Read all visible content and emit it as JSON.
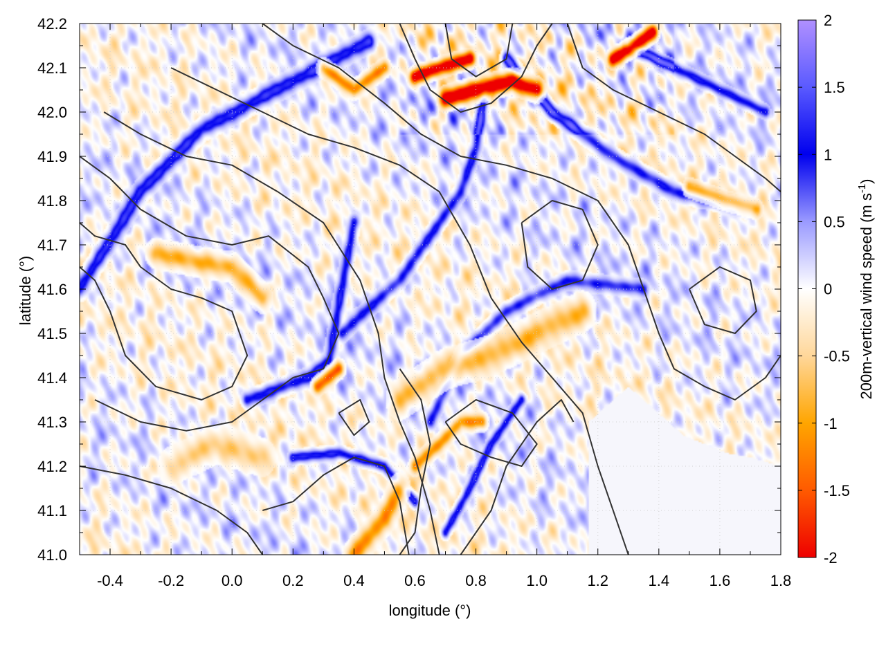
{
  "chart_data": {
    "type": "heatmap",
    "title": "",
    "xlabel": "longitude (°)",
    "ylabel": "latitude (°)",
    "colorbar_label": "200m-vertical wind speed (m s",
    "colorbar_label_sup": "-1",
    "colorbar_label_close": ")",
    "xlim": [
      -0.5,
      1.8
    ],
    "ylim": [
      41.0,
      42.2
    ],
    "xticks": [
      -0.4,
      -0.2,
      0.0,
      0.2,
      0.4,
      0.6,
      0.8,
      1.0,
      1.2,
      1.4,
      1.6,
      1.8
    ],
    "xtick_labels": [
      "-0.4",
      "-0.2",
      "0.0",
      "0.2",
      "0.4",
      "0.6",
      "0.8",
      "1.0",
      "1.2",
      "1.4",
      "1.6",
      "1.8"
    ],
    "yticks": [
      41.0,
      41.1,
      41.2,
      41.3,
      41.4,
      41.5,
      41.6,
      41.7,
      41.8,
      41.9,
      42.0,
      42.1,
      42.2
    ],
    "ytick_labels": [
      "41.0",
      "41.1",
      "41.2",
      "41.3",
      "41.4",
      "41.5",
      "41.6",
      "41.7",
      "41.8",
      "41.9",
      "42.0",
      "42.1",
      "42.2"
    ],
    "clim": [
      -2,
      2
    ],
    "cbticks": [
      2,
      1.5,
      1,
      0.5,
      0,
      -0.5,
      -1,
      -1.5,
      -2
    ],
    "cbtick_labels": [
      "2",
      "1.5",
      "1",
      "0.5",
      "0",
      "-0.5",
      "-1",
      "-1.5",
      "-2"
    ],
    "colormap": [
      [
        -2.0,
        "#ee0000"
      ],
      [
        -1.5,
        "#ff5a00"
      ],
      [
        -1.0,
        "#ffa500"
      ],
      [
        -0.5,
        "#ffd79a"
      ],
      [
        0.0,
        "#ffffff"
      ],
      [
        0.5,
        "#9a9aff"
      ],
      [
        1.0,
        "#0000ee"
      ],
      [
        1.5,
        "#5a5aff"
      ],
      [
        2.0,
        "#b090ff"
      ]
    ],
    "grid": true,
    "grid_color": "#d0d0d0",
    "contour_color": "#333333",
    "sea_color": "#f6f6fc",
    "coastline": [
      [
        1.17,
        41.3
      ],
      [
        1.3,
        41.38
      ],
      [
        1.48,
        41.27
      ],
      [
        1.62,
        41.23
      ],
      [
        1.7,
        41.22
      ],
      [
        1.8,
        41.2
      ]
    ],
    "blue_features": [
      {
        "points": [
          [
            -0.5,
            41.6
          ],
          [
            -0.3,
            41.82
          ],
          [
            -0.1,
            41.96
          ],
          [
            0.2,
            42.07
          ],
          [
            0.45,
            42.16
          ]
        ],
        "value": 1.2,
        "width": 0.012
      },
      {
        "points": [
          [
            0.05,
            41.35
          ],
          [
            0.25,
            41.4
          ],
          [
            0.32,
            41.44
          ],
          [
            0.36,
            41.6
          ],
          [
            0.4,
            41.75
          ]
        ],
        "value": 1.1,
        "width": 0.01
      },
      {
        "points": [
          [
            0.36,
            41.5
          ],
          [
            0.55,
            41.62
          ],
          [
            0.75,
            41.82
          ],
          [
            0.8,
            41.92
          ],
          [
            0.83,
            42.05
          ]
        ],
        "value": 1.0,
        "width": 0.01
      },
      {
        "points": [
          [
            0.9,
            42.12
          ],
          [
            1.05,
            42.0
          ],
          [
            1.25,
            41.9
          ],
          [
            1.45,
            41.82
          ],
          [
            1.7,
            41.78
          ]
        ],
        "value": 1.0,
        "width": 0.01
      },
      {
        "points": [
          [
            0.2,
            41.22
          ],
          [
            0.35,
            41.23
          ],
          [
            0.5,
            41.2
          ],
          [
            0.6,
            41.12
          ]
        ],
        "value": 1.2,
        "width": 0.008
      },
      {
        "points": [
          [
            0.65,
            41.3
          ],
          [
            0.75,
            41.45
          ],
          [
            0.9,
            41.55
          ],
          [
            1.1,
            41.62
          ],
          [
            1.35,
            41.6
          ]
        ],
        "value": 0.9,
        "width": 0.01
      },
      {
        "points": [
          [
            0.7,
            41.05
          ],
          [
            0.78,
            41.15
          ],
          [
            0.85,
            41.25
          ],
          [
            0.95,
            41.35
          ]
        ],
        "value": 1.1,
        "width": 0.008
      },
      {
        "points": [
          [
            1.3,
            42.15
          ],
          [
            1.45,
            42.1
          ],
          [
            1.6,
            42.05
          ],
          [
            1.75,
            42.0
          ]
        ],
        "value": 1.0,
        "width": 0.008
      }
    ],
    "orange_features": [
      {
        "points": [
          [
            -0.25,
            41.68
          ],
          [
            -0.1,
            41.66
          ],
          [
            0.0,
            41.65
          ],
          [
            0.1,
            41.58
          ]
        ],
        "value": -0.9,
        "width": 0.015
      },
      {
        "points": [
          [
            0.7,
            42.03
          ],
          [
            0.8,
            42.05
          ],
          [
            0.92,
            42.07
          ],
          [
            1.0,
            42.05
          ]
        ],
        "value": -1.9,
        "width": 0.012
      },
      {
        "points": [
          [
            0.6,
            42.08
          ],
          [
            0.68,
            42.1
          ],
          [
            0.78,
            42.12
          ]
        ],
        "value": -1.7,
        "width": 0.01
      },
      {
        "points": [
          [
            1.25,
            42.12
          ],
          [
            1.32,
            42.15
          ],
          [
            1.38,
            42.18
          ]
        ],
        "value": -1.8,
        "width": 0.01
      },
      {
        "points": [
          [
            0.3,
            42.1
          ],
          [
            0.4,
            42.05
          ],
          [
            0.5,
            42.1
          ]
        ],
        "value": -1.3,
        "width": 0.01
      },
      {
        "points": [
          [
            0.55,
            41.35
          ],
          [
            0.7,
            41.42
          ],
          [
            0.85,
            41.45
          ],
          [
            1.0,
            41.5
          ],
          [
            1.15,
            41.55
          ]
        ],
        "value": -0.8,
        "width": 0.02
      },
      {
        "points": [
          [
            0.4,
            41.0
          ],
          [
            0.5,
            41.08
          ],
          [
            0.55,
            41.15
          ]
        ],
        "value": -1.2,
        "width": 0.015
      },
      {
        "points": [
          [
            1.5,
            41.83
          ],
          [
            1.62,
            41.8
          ],
          [
            1.72,
            41.78
          ]
        ],
        "value": -1.0,
        "width": 0.01
      },
      {
        "points": [
          [
            0.28,
            41.38
          ],
          [
            0.35,
            41.42
          ]
        ],
        "value": -1.5,
        "width": 0.01
      },
      {
        "points": [
          [
            0.6,
            41.2
          ],
          [
            0.68,
            41.25
          ],
          [
            0.75,
            41.3
          ],
          [
            0.82,
            41.3
          ]
        ],
        "value": -1.2,
        "width": 0.01
      },
      {
        "points": [
          [
            -0.2,
            41.2
          ],
          [
            -0.05,
            41.25
          ],
          [
            0.1,
            41.22
          ]
        ],
        "value": -0.6,
        "width": 0.02
      }
    ],
    "contours": [
      [
        [
          -0.5,
          41.75
        ],
        [
          -0.45,
          41.72
        ],
        [
          -0.35,
          41.7
        ],
        [
          -0.3,
          41.65
        ],
        [
          -0.2,
          41.6
        ],
        [
          -0.1,
          41.58
        ],
        [
          0.0,
          41.55
        ],
        [
          0.05,
          41.45
        ],
        [
          0.0,
          41.38
        ],
        [
          -0.1,
          41.35
        ],
        [
          -0.25,
          41.38
        ],
        [
          -0.35,
          41.45
        ],
        [
          -0.4,
          41.55
        ],
        [
          -0.45,
          41.62
        ],
        [
          -0.5,
          41.65
        ]
      ],
      [
        [
          -0.45,
          41.35
        ],
        [
          -0.3,
          41.3
        ],
        [
          -0.15,
          41.28
        ],
        [
          0.0,
          41.3
        ],
        [
          0.1,
          41.35
        ],
        [
          0.2,
          41.4
        ],
        [
          0.3,
          41.42
        ],
        [
          0.35,
          41.5
        ],
        [
          0.3,
          41.58
        ],
        [
          0.25,
          41.65
        ],
        [
          0.12,
          41.72
        ],
        [
          0.0,
          41.7
        ],
        [
          -0.15,
          41.72
        ],
        [
          -0.3,
          41.78
        ],
        [
          -0.4,
          41.85
        ],
        [
          -0.5,
          41.9
        ]
      ],
      [
        [
          -0.42,
          42.0
        ],
        [
          -0.3,
          41.95
        ],
        [
          -0.15,
          41.9
        ],
        [
          0.0,
          41.88
        ],
        [
          0.15,
          41.82
        ],
        [
          0.3,
          41.75
        ],
        [
          0.42,
          41.62
        ],
        [
          0.48,
          41.5
        ],
        [
          0.5,
          41.4
        ],
        [
          0.55,
          41.3
        ],
        [
          0.6,
          41.22
        ],
        [
          0.65,
          41.1
        ],
        [
          0.68,
          41.0
        ]
      ],
      [
        [
          -0.2,
          42.1
        ],
        [
          -0.05,
          42.05
        ],
        [
          0.1,
          42.0
        ],
        [
          0.25,
          41.95
        ],
        [
          0.4,
          41.92
        ],
        [
          0.55,
          41.88
        ],
        [
          0.68,
          41.82
        ],
        [
          0.78,
          41.7
        ],
        [
          0.85,
          41.58
        ],
        [
          0.95,
          41.48
        ],
        [
          1.05,
          41.4
        ],
        [
          1.15,
          41.32
        ],
        [
          1.2,
          41.2
        ],
        [
          1.25,
          41.1
        ],
        [
          1.3,
          41.0
        ]
      ],
      [
        [
          0.1,
          42.2
        ],
        [
          0.2,
          42.15
        ],
        [
          0.35,
          42.1
        ],
        [
          0.5,
          42.02
        ],
        [
          0.62,
          41.95
        ],
        [
          0.75,
          41.9
        ],
        [
          0.9,
          41.88
        ],
        [
          1.05,
          41.85
        ],
        [
          1.2,
          41.8
        ],
        [
          1.3,
          41.7
        ],
        [
          1.35,
          41.6
        ],
        [
          1.4,
          41.5
        ],
        [
          1.45,
          41.42
        ],
        [
          1.55,
          41.38
        ],
        [
          1.65,
          41.35
        ],
        [
          1.75,
          41.4
        ],
        [
          1.8,
          41.45
        ]
      ],
      [
        [
          0.55,
          42.2
        ],
        [
          0.6,
          42.12
        ],
        [
          0.65,
          42.05
        ],
        [
          0.75,
          42.0
        ],
        [
          0.85,
          42.02
        ],
        [
          0.95,
          42.08
        ],
        [
          1.0,
          42.15
        ],
        [
          1.05,
          42.2
        ]
      ],
      [
        [
          0.7,
          42.2
        ],
        [
          0.72,
          42.12
        ],
        [
          0.8,
          42.08
        ],
        [
          0.9,
          42.12
        ],
        [
          0.92,
          42.2
        ]
      ],
      [
        [
          1.1,
          42.2
        ],
        [
          1.15,
          42.1
        ],
        [
          1.25,
          42.05
        ],
        [
          1.4,
          42.0
        ],
        [
          1.55,
          41.95
        ],
        [
          1.65,
          41.9
        ],
        [
          1.75,
          41.85
        ],
        [
          1.8,
          41.82
        ]
      ],
      [
        [
          0.95,
          41.75
        ],
        [
          1.05,
          41.8
        ],
        [
          1.15,
          41.78
        ],
        [
          1.2,
          41.7
        ],
        [
          1.15,
          41.62
        ],
        [
          1.05,
          41.6
        ],
        [
          0.97,
          41.65
        ],
        [
          0.95,
          41.75
        ]
      ],
      [
        [
          0.1,
          41.1
        ],
        [
          0.2,
          41.12
        ],
        [
          0.3,
          41.18
        ],
        [
          0.4,
          41.22
        ],
        [
          0.5,
          41.2
        ],
        [
          0.55,
          41.12
        ],
        [
          0.58,
          41.0
        ]
      ],
      [
        [
          -0.5,
          41.2
        ],
        [
          -0.35,
          41.18
        ],
        [
          -0.2,
          41.15
        ],
        [
          -0.05,
          41.1
        ],
        [
          0.05,
          41.05
        ],
        [
          0.1,
          41.0
        ]
      ],
      [
        [
          0.35,
          41.32
        ],
        [
          0.42,
          41.35
        ],
        [
          0.45,
          41.3
        ],
        [
          0.4,
          41.27
        ],
        [
          0.35,
          41.32
        ]
      ],
      [
        [
          0.7,
          41.3
        ],
        [
          0.8,
          41.35
        ],
        [
          0.92,
          41.32
        ],
        [
          1.0,
          41.25
        ],
        [
          0.95,
          41.2
        ],
        [
          0.85,
          41.22
        ],
        [
          0.75,
          41.25
        ],
        [
          0.7,
          41.3
        ]
      ],
      [
        [
          1.5,
          41.6
        ],
        [
          1.6,
          41.65
        ],
        [
          1.7,
          41.62
        ],
        [
          1.72,
          41.55
        ],
        [
          1.65,
          41.5
        ],
        [
          1.55,
          41.52
        ],
        [
          1.5,
          41.6
        ]
      ],
      [
        [
          0.75,
          41.0
        ],
        [
          0.85,
          41.1
        ],
        [
          0.9,
          41.2
        ],
        [
          1.0,
          41.3
        ],
        [
          1.08,
          41.35
        ],
        [
          1.12,
          41.3
        ]
      ],
      [
        [
          0.55,
          41.0
        ],
        [
          0.6,
          41.05
        ],
        [
          0.62,
          41.15
        ],
        [
          0.65,
          41.25
        ],
        [
          0.62,
          41.35
        ],
        [
          0.55,
          41.42
        ]
      ]
    ]
  }
}
